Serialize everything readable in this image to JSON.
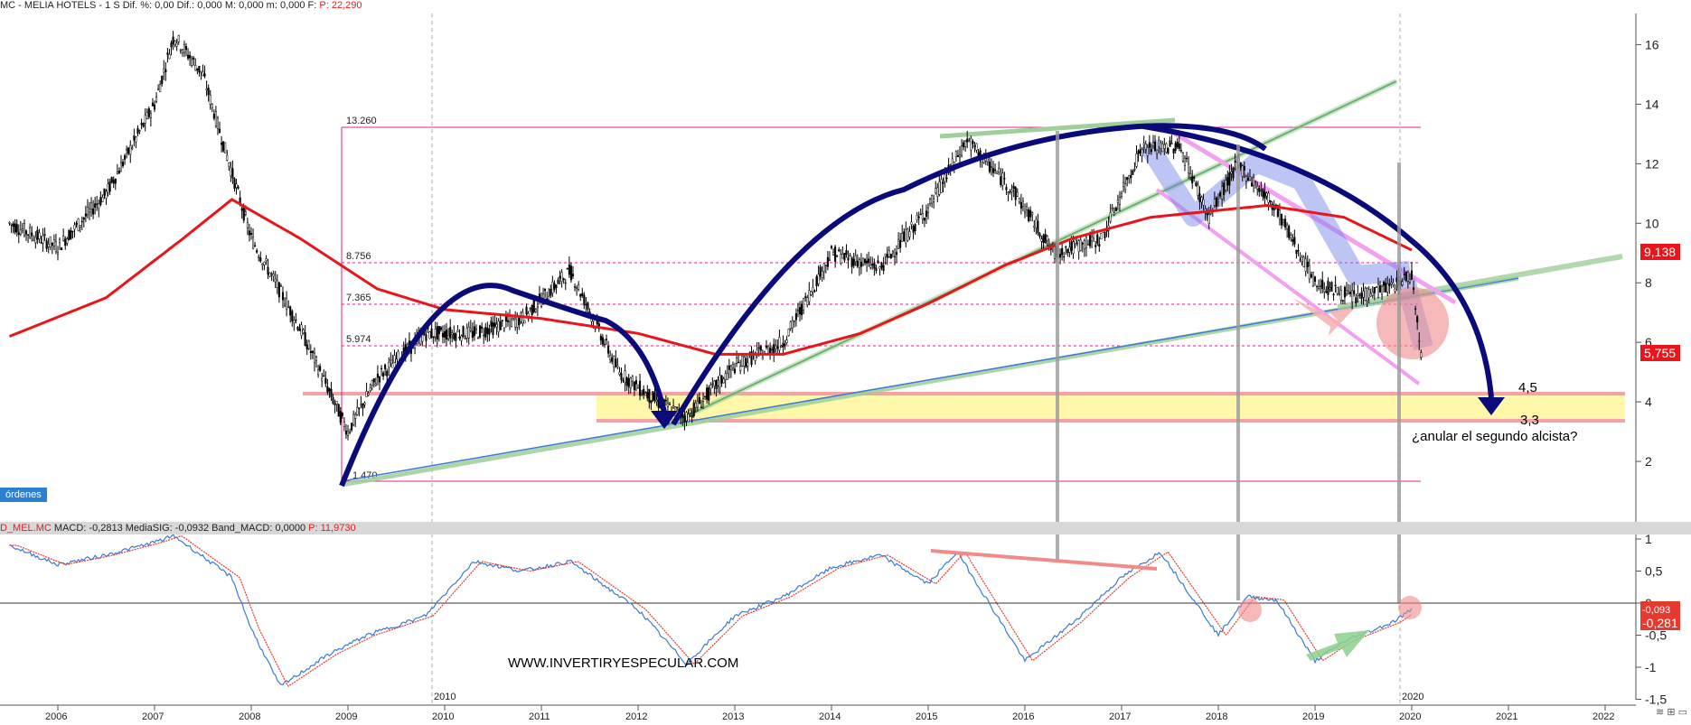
{
  "header": {
    "instrument": "MC - MELIA HOTELS -",
    "period": "1 S",
    "stats": "Dif. %: 0,00  Dif.: 0,000  M: 0,000  m: 0,000  F:",
    "last_price": "P: 22,290"
  },
  "orders_tab": "órdenes",
  "macd_header": {
    "name": "D_MEL.MC",
    "stats": "MACD: -0,2813  MediaSIG: -0,0932  Band_MACD: 0,0000",
    "price": "P: 11,9730"
  },
  "watermark": "WWW.INVERTIRYESPECULAR.COM",
  "annotations": {
    "level_high": "4,5",
    "level_low": "3,3",
    "question": "¿anular el segundo alcista?",
    "year_marker_top": "2010",
    "year_marker_bottom": "2020"
  },
  "price_badges": {
    "ma": "9,138",
    "last": "5,755",
    "macd_sig": "-0,093",
    "macd": "-0,281"
  },
  "colors": {
    "candles": "#000000",
    "ma_line": "#e8161b",
    "trend_blue": "#0a0a7a",
    "fib_lines": "#e0208a",
    "support_band": "#fff6a0",
    "macd_line": "#3b7ad6",
    "signal_line": "#e63a2f"
  },
  "chart_data": [
    {
      "type": "line",
      "title": "",
      "xlabel": "",
      "ylabel": "",
      "x_ticks": [
        "2006",
        "2007",
        "2008",
        "2009",
        "2010",
        "2011",
        "2012",
        "2013",
        "2014",
        "2015",
        "2016",
        "2017",
        "2018",
        "2019",
        "2020",
        "2021",
        "2022"
      ],
      "y_ticks": [
        2,
        4,
        6,
        8,
        10,
        12,
        14,
        16
      ],
      "ylim": [
        0,
        17.5
      ],
      "series": [
        {
          "x": [
            2005.5,
            2006,
            2006.5,
            2007,
            2007.2,
            2007.5,
            2008,
            2008.5,
            2009,
            2009.3,
            2009.8,
            2010.3,
            2010.8,
            2011.3,
            2011.8,
            2012.2,
            2012.5,
            2013,
            2013.5,
            2014,
            2014.5,
            2015,
            2015.4,
            2015.9,
            2016.3,
            2016.8,
            2017.2,
            2017.6,
            2017.9,
            2018.2,
            2018.6,
            2019,
            2019.4,
            2019.8,
            2020.0,
            2020.1
          ],
          "y": [
            10,
            9.2,
            11,
            14,
            16.3,
            15,
            9.5,
            6.5,
            3,
            4.8,
            6.3,
            6.3,
            6.8,
            8.4,
            5,
            4,
            3.5,
            5.2,
            6,
            9,
            8.5,
            10.5,
            12.8,
            11,
            9,
            9.5,
            12.5,
            12.6,
            10.2,
            12,
            10.5,
            8,
            7.5,
            7.9,
            8.3,
            5.6
          ]
        },
        {
          "x": [
            2005.5,
            2006.5,
            2007.3,
            2007.8,
            2008.5,
            2009.3,
            2010,
            2011,
            2012,
            2012.8,
            2013.5,
            2014.3,
            2015,
            2015.8,
            2016.5,
            2017.3,
            2017.9,
            2018.5,
            2019.3,
            2020.0
          ],
          "y": [
            6.2,
            7.5,
            9.5,
            10.8,
            9.5,
            7.8,
            7.1,
            6.8,
            6.3,
            5.6,
            5.6,
            6.3,
            7.3,
            8.6,
            9.5,
            10.2,
            10.4,
            10.6,
            10.2,
            9.1
          ]
        }
      ]
    },
    {
      "type": "line",
      "title": "",
      "y_ticks": [
        1,
        0.5,
        0,
        -0.5,
        -1,
        -1.5
      ],
      "ylim": [
        -1.7,
        1.2
      ],
      "series": [
        {
          "x": [
            2005.5,
            2006,
            2006.5,
            2007,
            2007.2,
            2007.8,
            2008,
            2008.3,
            2008.8,
            2009.2,
            2009.8,
            2010.3,
            2010.8,
            2011.3,
            2012,
            2012.5,
            2013,
            2013.5,
            2014,
            2014.5,
            2015,
            2015.3,
            2016,
            2016.5,
            2017,
            2017.4,
            2018,
            2018.3,
            2018.6,
            2019,
            2019.3,
            2019.8,
            2020
          ],
          "y": [
            0.9,
            0.6,
            0.75,
            0.95,
            1.05,
            0.4,
            -0.4,
            -1.3,
            -0.8,
            -0.5,
            -0.2,
            0.65,
            0.5,
            0.65,
            -0.1,
            -0.95,
            -0.2,
            0.1,
            0.55,
            0.75,
            0.3,
            0.8,
            -0.9,
            -0.3,
            0.4,
            0.8,
            -0.5,
            0.1,
            0.05,
            -0.9,
            -0.6,
            -0.3,
            -0.1
          ]
        }
      ]
    }
  ]
}
